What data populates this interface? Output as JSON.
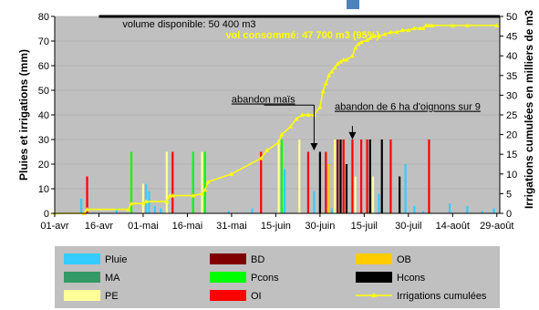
{
  "chart_data": {
    "type": "bar",
    "plot_background": "#c0c0c0",
    "y_left": {
      "label": "Pluies et irrigations (mm)",
      "range": [
        0,
        80
      ],
      "ticks": [
        0,
        10,
        20,
        30,
        40,
        50,
        60,
        70,
        80
      ]
    },
    "y_right": {
      "label": "Irrigations cumulées en milliers de m3",
      "range": [
        0,
        50
      ],
      "ticks": [
        0,
        5,
        10,
        15,
        20,
        25,
        30,
        35,
        40,
        45,
        50
      ]
    },
    "x_axis": {
      "range_days": [
        0,
        151
      ],
      "tick_labels": [
        "01-avr",
        "16-avr",
        "01-mai",
        "16-mai",
        "31-mai",
        "15-juin",
        "30-juin",
        "15-juil",
        "30-juil",
        "14-août",
        "29-août"
      ],
      "tick_days": [
        0,
        15,
        30,
        45,
        60,
        75,
        90,
        105,
        120,
        135,
        150
      ]
    },
    "series": [
      {
        "name": "Pluie",
        "color": "#33ccff",
        "days": [
          9,
          21,
          31,
          32,
          34,
          36,
          51,
          59,
          67,
          78,
          88,
          94,
          110,
          119,
          122,
          125,
          134,
          140,
          145,
          149
        ],
        "values": [
          6,
          2,
          12,
          9,
          3,
          2,
          2,
          1,
          2,
          18,
          9,
          2,
          8,
          20,
          3,
          1,
          4,
          3,
          1,
          2
        ]
      },
      {
        "name": "BD",
        "color": "#800000",
        "days": [
          96
        ],
        "values": [
          30
        ]
      },
      {
        "name": "OB",
        "color": "#ffcc00",
        "days": [
          93
        ],
        "values": [
          20
        ]
      },
      {
        "name": "MA",
        "color": "#339966",
        "days": [
          47
        ],
        "values": [
          22
        ]
      },
      {
        "name": "Pcons",
        "color": "#00ff00",
        "days": [
          26,
          47,
          51,
          77
        ],
        "values": [
          25,
          25,
          25,
          30
        ]
      },
      {
        "name": "Hcons",
        "color": "#000000",
        "days": [
          90,
          97,
          99,
          107,
          111,
          117
        ],
        "values": [
          25,
          30,
          20,
          30,
          30,
          15
        ]
      },
      {
        "name": "PE",
        "color": "#ffff99",
        "days": [
          30,
          38,
          50,
          76,
          83,
          95,
          102,
          108
        ],
        "values": [
          12,
          25,
          25,
          30,
          30,
          30,
          15,
          15
        ]
      },
      {
        "name": "OI",
        "color": "#ff0000",
        "days": [
          11,
          40,
          70,
          86,
          92,
          98,
          101,
          104,
          106,
          114,
          127
        ],
        "values": [
          15,
          25,
          25,
          25,
          25,
          30,
          30,
          30,
          30,
          30,
          30
        ]
      },
      {
        "name": "Irrigations cumulées",
        "color": "#ffff00",
        "axis": "right",
        "days": [
          0,
          10,
          11,
          25,
          26,
          30,
          31,
          38,
          39,
          40,
          47,
          50,
          51,
          52,
          60,
          70,
          72,
          76,
          77,
          80,
          82,
          84,
          86,
          88,
          90,
          91,
          92,
          93,
          94,
          95,
          96,
          97,
          98,
          99,
          101,
          102,
          103,
          104,
          106,
          107,
          108,
          110,
          112,
          114,
          116,
          118,
          120,
          122,
          124,
          125,
          126,
          127,
          128,
          135,
          140,
          150
        ],
        "values": [
          0,
          0,
          1,
          1,
          2.5,
          2.5,
          3,
          3,
          4.5,
          4.5,
          4.5,
          5,
          6,
          8,
          10,
          14,
          16,
          18,
          20,
          22,
          24,
          25,
          25,
          25,
          27,
          31,
          33,
          35,
          36,
          37,
          38,
          38.5,
          39,
          39,
          40,
          42,
          43,
          43.5,
          44,
          44.5,
          45,
          45,
          45.5,
          46,
          46,
          46.5,
          46.5,
          47,
          47,
          47,
          47.7,
          47.7,
          47.7,
          47.7,
          47.7,
          47.7
        ]
      }
    ],
    "capacity_line": {
      "value": 50,
      "axis": "right",
      "label": "volume disponible: 50 400 m3"
    },
    "annotations": [
      {
        "text": "vol consommé: 47 700 m3 (95%)",
        "style": "yellow"
      },
      {
        "text": "abandon maïs",
        "style": "underline",
        "arrow_day": 88
      },
      {
        "text": "abandon de 6 ha d'oignons sur 9",
        "style": "underline",
        "arrow_day": 101
      }
    ],
    "legend": {
      "placement": "bottom",
      "columns": 3
    }
  }
}
